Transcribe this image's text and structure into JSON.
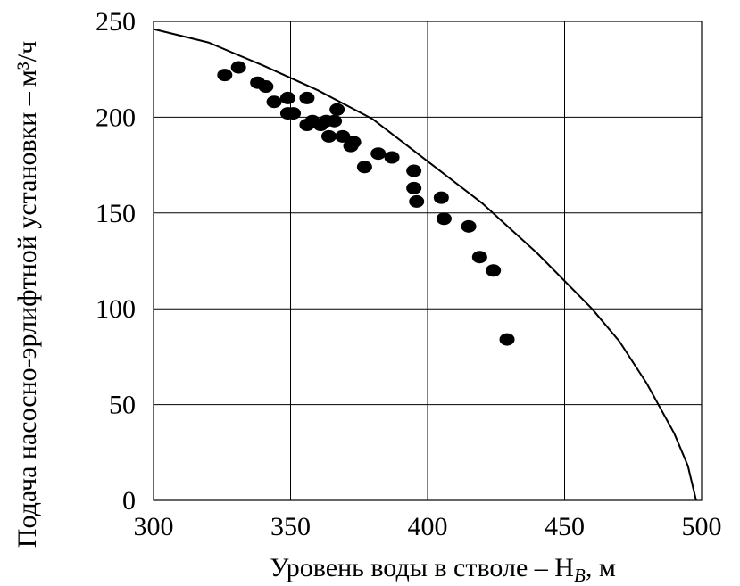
{
  "chart_data": {
    "type": "scatter",
    "title": "",
    "xlabel": "Уровень воды в стволе – H",
    "xlabel_sub": "B",
    "xlabel_unit": ", м",
    "ylabel": "Подача насосно-эрлифтной установки –",
    "ylabel_tail": "м³/ч",
    "xlim": [
      300,
      500
    ],
    "ylim": [
      0,
      250
    ],
    "x_ticks": [
      300,
      350,
      400,
      450,
      500
    ],
    "y_ticks": [
      0,
      50,
      100,
      150,
      200,
      250
    ],
    "grid": true,
    "series": [
      {
        "kind": "points",
        "color": "#000000",
        "points": [
          [
            326,
            222
          ],
          [
            331,
            226
          ],
          [
            338,
            218
          ],
          [
            341,
            216
          ],
          [
            344,
            208
          ],
          [
            349,
            210
          ],
          [
            349,
            202
          ],
          [
            351,
            202
          ],
          [
            356,
            210
          ],
          [
            356,
            196
          ],
          [
            358,
            198
          ],
          [
            361,
            196
          ],
          [
            363,
            198
          ],
          [
            364,
            190
          ],
          [
            366,
            198
          ],
          [
            367,
            204
          ],
          [
            369,
            190
          ],
          [
            372,
            185
          ],
          [
            373,
            187
          ],
          [
            377,
            174
          ],
          [
            382,
            181
          ],
          [
            387,
            179
          ],
          [
            395,
            172
          ],
          [
            395,
            163
          ],
          [
            396,
            156
          ],
          [
            405,
            158
          ],
          [
            406,
            147
          ],
          [
            415,
            143
          ],
          [
            419,
            127
          ],
          [
            424,
            120
          ],
          [
            429,
            84
          ]
        ]
      },
      {
        "kind": "curve",
        "color": "#000000",
        "points": [
          [
            300,
            246
          ],
          [
            320,
            239
          ],
          [
            340,
            227
          ],
          [
            360,
            214
          ],
          [
            380,
            199
          ],
          [
            400,
            177
          ],
          [
            420,
            155
          ],
          [
            440,
            129
          ],
          [
            460,
            100
          ],
          [
            470,
            83
          ],
          [
            480,
            61
          ],
          [
            490,
            35
          ],
          [
            495,
            18
          ],
          [
            498,
            0
          ]
        ]
      }
    ]
  }
}
